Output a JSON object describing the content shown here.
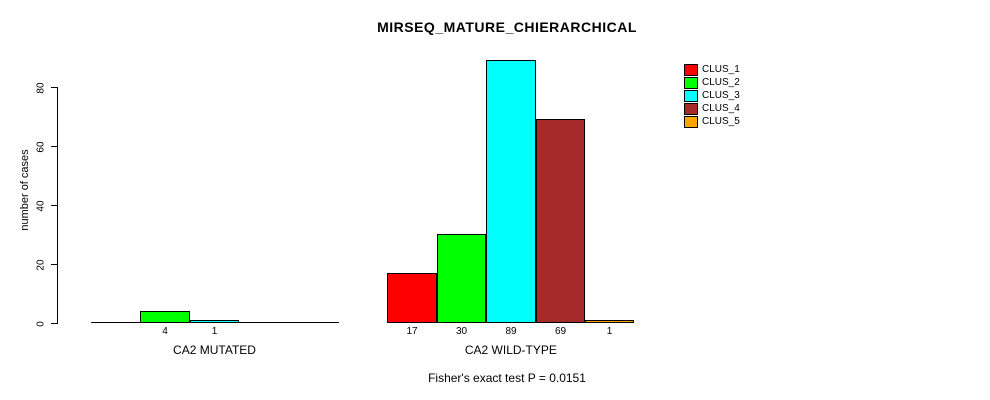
{
  "chart_data": {
    "type": "bar",
    "title": "MIRSEQ_MATURE_CHIERARCHICAL",
    "xlabel": "",
    "ylabel": "number of cases",
    "ylim": [
      0,
      89
    ],
    "yticks": [
      0,
      20,
      40,
      60,
      80
    ],
    "grid": false,
    "legend_position": "right",
    "categories": [
      "CA2 MUTATED",
      "CA2 WILD-TYPE"
    ],
    "series": [
      {
        "name": "CLUS_1",
        "color": "#FF0000",
        "values": [
          0,
          17
        ]
      },
      {
        "name": "CLUS_2",
        "color": "#00FF00",
        "values": [
          4,
          30
        ]
      },
      {
        "name": "CLUS_3",
        "color": "#00FFFF",
        "values": [
          1,
          89
        ]
      },
      {
        "name": "CLUS_4",
        "color": "#A52A2A",
        "values": [
          0,
          69
        ]
      },
      {
        "name": "CLUS_5",
        "color": "#FFA500",
        "values": [
          0,
          1
        ]
      }
    ],
    "bar_value_labels": {
      "group_1": [
        "4",
        "1"
      ],
      "group_2": [
        "17",
        "30",
        "89",
        "69",
        "1"
      ],
      "zeros_hidden": true
    },
    "annotation": "Fisher's exact test P = 0.0151",
    "axis_color": "#000000",
    "background_color": "#FFFFFF"
  }
}
